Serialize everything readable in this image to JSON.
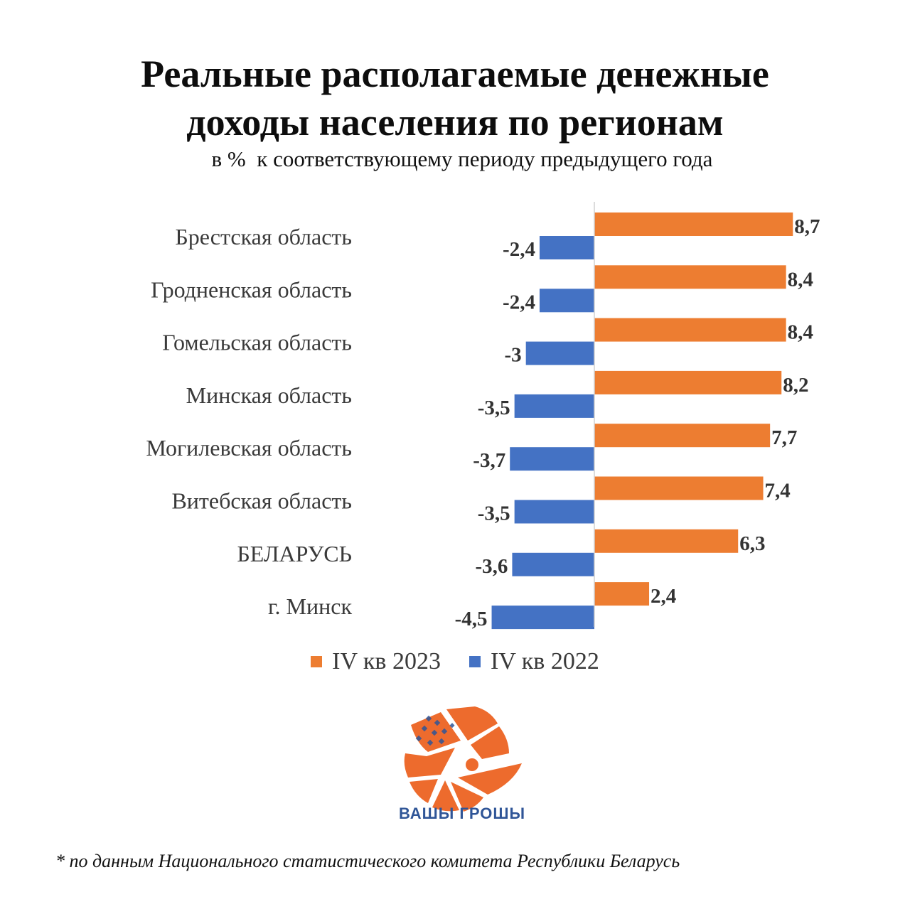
{
  "title_line1": "Реальные располагаемые денежные",
  "title_line2": "доходы населения по регионам",
  "subtitle": "в %  к соответствующему периоду предыдущего года",
  "colors": {
    "series_2023": "#ED7D31",
    "series_2022": "#4472C4",
    "brand": "#2F5597",
    "logo_orange": "#ED6B2D"
  },
  "logo_text": "ВАШЫ ГРОШЫ",
  "footnote": "* по данным Национального статистического комитета Республики Беларусь",
  "chart_data": {
    "type": "bar",
    "orientation": "horizontal",
    "title": "Реальные располагаемые денежные доходы населения по регионам",
    "subtitle": "в %  к соответствующему периоду предыдущего года",
    "categories": [
      "Брестская область",
      "Гродненская область",
      "Гомельская область",
      "Минская область",
      "Могилевская область",
      "Витебская область",
      "БЕЛАРУСЬ",
      "г. Минск"
    ],
    "series": [
      {
        "name": "IV кв 2023",
        "color": "#ED7D31",
        "values": [
          8.7,
          8.4,
          8.4,
          8.2,
          7.7,
          7.4,
          6.3,
          2.4
        ],
        "labels": [
          "8,7",
          "8,4",
          "8,4",
          "8,2",
          "7,7",
          "7,4",
          "6,3",
          "2,4"
        ]
      },
      {
        "name": "IV кв 2022",
        "color": "#4472C4",
        "values": [
          -2.4,
          -2.4,
          -3,
          -3.5,
          -3.7,
          -3.5,
          -3.6,
          -4.5
        ],
        "labels": [
          "-2,4",
          "-2,4",
          "-3",
          "-3,5",
          "-3,7",
          "-3,5",
          "-3,6",
          "-4,5"
        ]
      }
    ],
    "xlim": [
      -4.5,
      8.7
    ],
    "grid": false,
    "legend": "bottom"
  }
}
